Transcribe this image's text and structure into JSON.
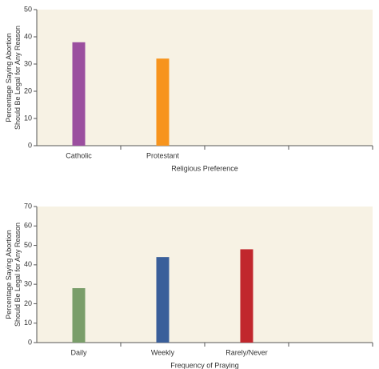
{
  "chart_data": [
    {
      "type": "bar",
      "ylabel": [
        "Percentage Saying Abortion",
        "Should Be Legal for Any Reason"
      ],
      "xlabel": "Religious Preference",
      "categories": [
        "Catholic",
        "Protestant",
        null,
        null
      ],
      "values": [
        38,
        32,
        null,
        null
      ],
      "colors": [
        "#9b4f9f",
        "#f7941d",
        null,
        null
      ],
      "ylim": [
        0,
        50
      ],
      "yticks": [
        0,
        10,
        20,
        30,
        40,
        50
      ]
    },
    {
      "type": "bar",
      "ylabel": [
        "Percentage Saying Abortion",
        "Should Be Legal for Any Reason"
      ],
      "xlabel": "Frequency of Praying",
      "categories": [
        "Daily",
        "Weekly",
        "Rarely/Never",
        null
      ],
      "values": [
        28,
        44,
        48,
        null
      ],
      "colors": [
        "#7a9e6a",
        "#3a5f9a",
        "#c1272d",
        null
      ],
      "ylim": [
        0,
        70
      ],
      "yticks": [
        0,
        10,
        20,
        30,
        40,
        50,
        60,
        70
      ]
    }
  ]
}
